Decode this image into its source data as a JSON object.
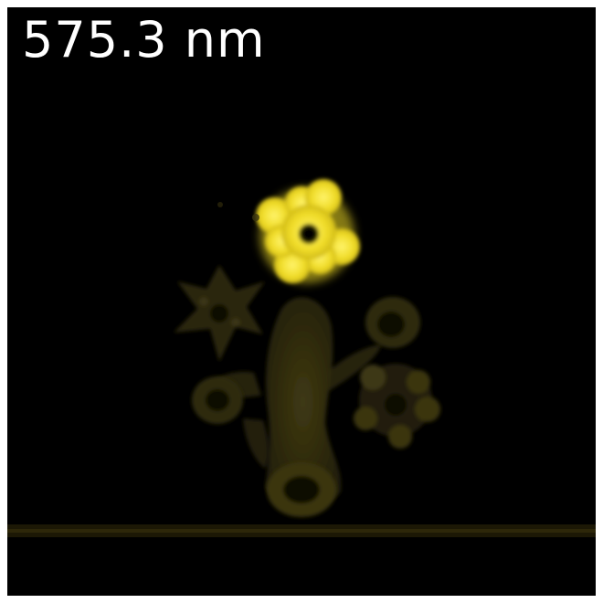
{
  "image": {
    "label": "575.3 nm",
    "colors": {
      "background": "#000000",
      "label_text": "#ffffff",
      "bright_flower": "#f2e32c",
      "dim_structure": "#3a3510",
      "substrate_line": "#2a2507"
    }
  }
}
